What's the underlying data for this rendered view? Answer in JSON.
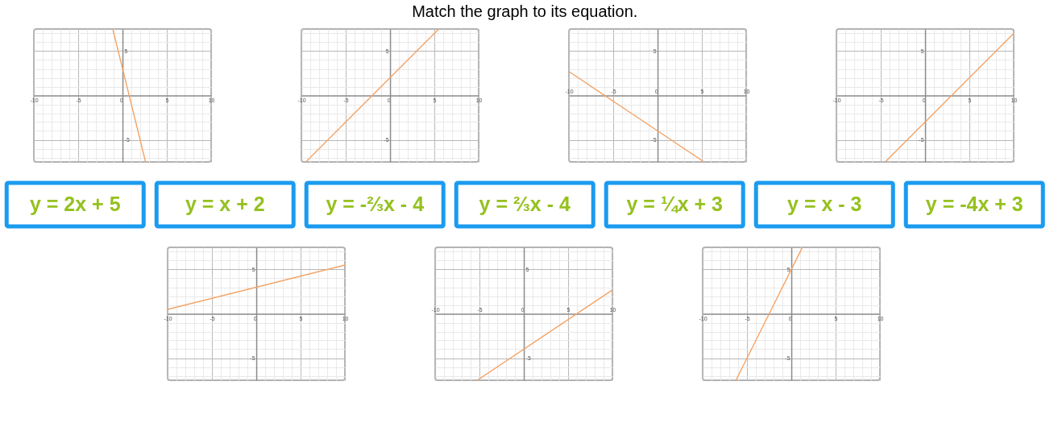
{
  "chart_data": [
    {
      "type": "other",
      "title": "Match the graph to its equation.",
      "annotations": [
        "y = 2x + 5",
        "y = x + 2",
        "y = -⅔x - 4",
        "y = ⅔x - 4",
        "y = ¼x + 3",
        "y = x - 3",
        "y = -4x + 3"
      ]
    },
    {
      "type": "line",
      "x": [
        -1.1,
        2.6
      ],
      "values": [
        7.5,
        -7.5
      ],
      "color": "#f5a263",
      "xlim": [
        -10,
        10
      ],
      "ylim": [
        -7.5,
        7.5
      ],
      "grid": true,
      "xticks": [
        -10,
        {
          "value": -9,
          "label": null
        },
        {
          "value": -8,
          "label": null
        },
        {
          "value": -7,
          "label": null
        },
        {
          "value": -6,
          "label": null
        },
        -5,
        {
          "value": -4,
          "label": null
        },
        {
          "value": -3,
          "label": null
        },
        {
          "value": -2,
          "label": null
        },
        {
          "value": -1,
          "label": null
        },
        0,
        {
          "value": 1,
          "label": null
        },
        {
          "value": 2,
          "label": null
        },
        {
          "value": 3,
          "label": null
        },
        {
          "value": 4,
          "label": null
        },
        5,
        {
          "value": 6,
          "label": null
        },
        {
          "value": 7,
          "label": null
        },
        {
          "value": 8,
          "label": null
        },
        {
          "value": 9,
          "label": null
        },
        10
      ],
      "yticks": [
        {
          "value": -7,
          "label": null
        },
        {
          "value": -6,
          "label": null
        },
        -5,
        {
          "value": -4,
          "label": null
        },
        {
          "value": -3,
          "label": null
        },
        {
          "value": -2,
          "label": null
        },
        {
          "value": -1,
          "label": null
        },
        {
          "value": 0,
          "label": null
        },
        {
          "value": 1,
          "label": null
        },
        {
          "value": 2,
          "label": null
        },
        {
          "value": 3,
          "label": null
        },
        {
          "value": 4,
          "label": null
        },
        5,
        {
          "value": 6,
          "label": null
        },
        {
          "value": 7,
          "label": null
        }
      ]
    },
    {
      "type": "line",
      "x": [
        -9.5,
        5.5
      ],
      "values": [
        -7.5,
        7.5
      ],
      "color": "#f5a263",
      "xlim": [
        -10,
        10
      ],
      "ylim": [
        -7.5,
        7.5
      ],
      "grid": true,
      "xticks": [
        -10,
        {
          "value": -9,
          "label": null
        },
        {
          "value": -8,
          "label": null
        },
        {
          "value": -7,
          "label": null
        },
        {
          "value": -6,
          "label": null
        },
        -5,
        {
          "value": -4,
          "label": null
        },
        {
          "value": -3,
          "label": null
        },
        {
          "value": -2,
          "label": null
        },
        {
          "value": -1,
          "label": null
        },
        0,
        {
          "value": 1,
          "label": null
        },
        {
          "value": 2,
          "label": null
        },
        {
          "value": 3,
          "label": null
        },
        {
          "value": 4,
          "label": null
        },
        5,
        {
          "value": 6,
          "label": null
        },
        {
          "value": 7,
          "label": null
        },
        {
          "value": 8,
          "label": null
        },
        {
          "value": 9,
          "label": null
        },
        10
      ],
      "yticks": [
        {
          "value": -7,
          "label": null
        },
        {
          "value": -6,
          "label": null
        },
        -5,
        {
          "value": -4,
          "label": null
        },
        {
          "value": -3,
          "label": null
        },
        {
          "value": -2,
          "label": null
        },
        {
          "value": -1,
          "label": null
        },
        {
          "value": 0,
          "label": null
        },
        {
          "value": 1,
          "label": null
        },
        {
          "value": 2,
          "label": null
        },
        {
          "value": 3,
          "label": null
        },
        {
          "value": 4,
          "label": null
        },
        5,
        {
          "value": 6,
          "label": null
        },
        {
          "value": 7,
          "label": null
        }
      ]
    },
    {
      "type": "line",
      "x": [
        -10,
        5.25
      ],
      "values": [
        2.7,
        -7.5
      ],
      "color": "#f5a263",
      "xlim": [
        -10,
        10
      ],
      "ylim": [
        -7.5,
        7.5
      ],
      "grid": true,
      "xticks": [
        -10,
        {
          "value": -9,
          "label": null
        },
        {
          "value": -8,
          "label": null
        },
        {
          "value": -7,
          "label": null
        },
        {
          "value": -6,
          "label": null
        },
        -5,
        {
          "value": -4,
          "label": null
        },
        {
          "value": -3,
          "label": null
        },
        {
          "value": -2,
          "label": null
        },
        {
          "value": -1,
          "label": null
        },
        0,
        {
          "value": 1,
          "label": null
        },
        {
          "value": 2,
          "label": null
        },
        {
          "value": 3,
          "label": null
        },
        {
          "value": 4,
          "label": null
        },
        5,
        {
          "value": 6,
          "label": null
        },
        {
          "value": 7,
          "label": null
        },
        {
          "value": 8,
          "label": null
        },
        {
          "value": 9,
          "label": null
        },
        10
      ],
      "yticks": [
        {
          "value": -7,
          "label": null
        },
        {
          "value": -6,
          "label": null
        },
        -5,
        {
          "value": -4,
          "label": null
        },
        {
          "value": -3,
          "label": null
        },
        {
          "value": -2,
          "label": null
        },
        {
          "value": -1,
          "label": null
        },
        {
          "value": 0,
          "label": null
        },
        {
          "value": 1,
          "label": null
        },
        {
          "value": 2,
          "label": null
        },
        {
          "value": 3,
          "label": null
        },
        {
          "value": 4,
          "label": null
        },
        5,
        {
          "value": 6,
          "label": null
        },
        {
          "value": 7,
          "label": null
        }
      ]
    },
    {
      "type": "line",
      "x": [
        -4.5,
        10
      ],
      "values": [
        -7.5,
        7
      ],
      "color": "#f5a263",
      "xlim": [
        -10,
        10
      ],
      "ylim": [
        -7.5,
        7.5
      ],
      "grid": true,
      "xticks": [
        -10,
        {
          "value": -9,
          "label": null
        },
        {
          "value": -8,
          "label": null
        },
        {
          "value": -7,
          "label": null
        },
        {
          "value": -6,
          "label": null
        },
        -5,
        {
          "value": -4,
          "label": null
        },
        {
          "value": -3,
          "label": null
        },
        {
          "value": -2,
          "label": null
        },
        {
          "value": -1,
          "label": null
        },
        0,
        {
          "value": 1,
          "label": null
        },
        {
          "value": 2,
          "label": null
        },
        {
          "value": 3,
          "label": null
        },
        {
          "value": 4,
          "label": null
        },
        5,
        {
          "value": 6,
          "label": null
        },
        {
          "value": 7,
          "label": null
        },
        {
          "value": 8,
          "label": null
        },
        {
          "value": 9,
          "label": null
        },
        10
      ],
      "yticks": [
        {
          "value": -7,
          "label": null
        },
        {
          "value": -6,
          "label": null
        },
        -5,
        {
          "value": -4,
          "label": null
        },
        {
          "value": -3,
          "label": null
        },
        {
          "value": -2,
          "label": null
        },
        {
          "value": -1,
          "label": null
        },
        {
          "value": 0,
          "label": null
        },
        {
          "value": 1,
          "label": null
        },
        {
          "value": 2,
          "label": null
        },
        {
          "value": 3,
          "label": null
        },
        {
          "value": 4,
          "label": null
        },
        5,
        {
          "value": 6,
          "label": null
        },
        {
          "value": 7,
          "label": null
        }
      ]
    },
    {
      "type": "line",
      "x": [
        -10,
        10
      ],
      "values": [
        0.5,
        5.5
      ],
      "color": "#f5a263",
      "xlim": [
        -10,
        10
      ],
      "ylim": [
        -7.5,
        7.5
      ],
      "grid": true,
      "xticks": [
        -10,
        {
          "value": -9,
          "label": null
        },
        {
          "value": -8,
          "label": null
        },
        {
          "value": -7,
          "label": null
        },
        {
          "value": -6,
          "label": null
        },
        -5,
        {
          "value": -4,
          "label": null
        },
        {
          "value": -3,
          "label": null
        },
        {
          "value": -2,
          "label": null
        },
        {
          "value": -1,
          "label": null
        },
        0,
        {
          "value": 1,
          "label": null
        },
        {
          "value": 2,
          "label": null
        },
        {
          "value": 3,
          "label": null
        },
        {
          "value": 4,
          "label": null
        },
        5,
        {
          "value": 6,
          "label": null
        },
        {
          "value": 7,
          "label": null
        },
        {
          "value": 8,
          "label": null
        },
        {
          "value": 9,
          "label": null
        },
        10
      ],
      "yticks": [
        {
          "value": -7,
          "label": null
        },
        {
          "value": -6,
          "label": null
        },
        -5,
        {
          "value": -4,
          "label": null
        },
        {
          "value": -3,
          "label": null
        },
        {
          "value": -2,
          "label": null
        },
        {
          "value": -1,
          "label": null
        },
        {
          "value": 0,
          "label": null
        },
        {
          "value": 1,
          "label": null
        },
        {
          "value": 2,
          "label": null
        },
        {
          "value": 3,
          "label": null
        },
        {
          "value": 4,
          "label": null
        },
        5,
        {
          "value": 6,
          "label": null
        },
        {
          "value": 7,
          "label": null
        }
      ]
    },
    {
      "type": "line",
      "x": [
        -5.25,
        10
      ],
      "values": [
        -7.5,
        2.7
      ],
      "color": "#f5a263",
      "xlim": [
        -10,
        10
      ],
      "ylim": [
        -7.5,
        7.5
      ],
      "grid": true,
      "xticks": [
        -10,
        {
          "value": -9,
          "label": null
        },
        {
          "value": -8,
          "label": null
        },
        {
          "value": -7,
          "label": null
        },
        {
          "value": -6,
          "label": null
        },
        -5,
        {
          "value": -4,
          "label": null
        },
        {
          "value": -3,
          "label": null
        },
        {
          "value": -2,
          "label": null
        },
        {
          "value": -1,
          "label": null
        },
        0,
        {
          "value": 1,
          "label": null
        },
        {
          "value": 2,
          "label": null
        },
        {
          "value": 3,
          "label": null
        },
        {
          "value": 4,
          "label": null
        },
        5,
        {
          "value": 6,
          "label": null
        },
        {
          "value": 7,
          "label": null
        },
        {
          "value": 8,
          "label": null
        },
        {
          "value": 9,
          "label": null
        },
        10
      ],
      "yticks": [
        {
          "value": -7,
          "label": null
        },
        {
          "value": -6,
          "label": null
        },
        -5,
        {
          "value": -4,
          "label": null
        },
        {
          "value": -3,
          "label": null
        },
        {
          "value": -2,
          "label": null
        },
        {
          "value": -1,
          "label": null
        },
        {
          "value": 0,
          "label": null
        },
        {
          "value": 1,
          "label": null
        },
        {
          "value": 2,
          "label": null
        },
        {
          "value": 3,
          "label": null
        },
        {
          "value": 4,
          "label": null
        },
        5,
        {
          "value": 6,
          "label": null
        },
        {
          "value": 7,
          "label": null
        }
      ]
    },
    {
      "type": "line",
      "x": [
        -6.25,
        1.25
      ],
      "values": [
        -7.5,
        7.5
      ],
      "color": "#f5a263",
      "xlim": [
        -10,
        10
      ],
      "ylim": [
        -7.5,
        7.5
      ],
      "grid": true,
      "xticks": [
        -10,
        {
          "value": -9,
          "label": null
        },
        {
          "value": -8,
          "label": null
        },
        {
          "value": -7,
          "label": null
        },
        {
          "value": -6,
          "label": null
        },
        -5,
        {
          "value": -4,
          "label": null
        },
        {
          "value": -3,
          "label": null
        },
        {
          "value": -2,
          "label": null
        },
        {
          "value": -1,
          "label": null
        },
        0,
        {
          "value": 1,
          "label": null
        },
        {
          "value": 2,
          "label": null
        },
        {
          "value": 3,
          "label": null
        },
        {
          "value": 4,
          "label": null
        },
        5,
        {
          "value": 6,
          "label": null
        },
        {
          "value": 7,
          "label": null
        },
        {
          "value": 8,
          "label": null
        },
        {
          "value": 9,
          "label": null
        },
        10
      ],
      "yticks": [
        {
          "value": -7,
          "label": null
        },
        {
          "value": -6,
          "label": null
        },
        -5,
        {
          "value": -4,
          "label": null
        },
        {
          "value": -3,
          "label": null
        },
        {
          "value": -2,
          "label": null
        },
        {
          "value": -1,
          "label": null
        },
        {
          "value": 0,
          "label": null
        },
        {
          "value": 1,
          "label": null
        },
        {
          "value": 2,
          "label": null
        },
        {
          "value": 3,
          "label": null
        },
        {
          "value": 4,
          "label": null
        },
        5,
        {
          "value": 6,
          "label": null
        },
        {
          "value": 7,
          "label": null
        }
      ]
    }
  ]
}
